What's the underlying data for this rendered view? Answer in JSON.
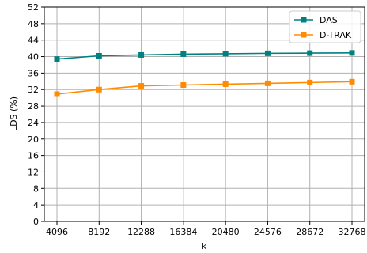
{
  "chart_data": {
    "type": "line",
    "x": [
      4096,
      8192,
      12288,
      16384,
      20480,
      24576,
      28672,
      32768
    ],
    "x_tick_labels": [
      "4096",
      "8192",
      "12288",
      "16384",
      "20480",
      "24576",
      "28672",
      "32768"
    ],
    "y_ticks": [
      0,
      4,
      8,
      12,
      16,
      20,
      24,
      28,
      32,
      36,
      40,
      44,
      48,
      52
    ],
    "y_tick_labels": [
      "0",
      "4",
      "8",
      "12",
      "16",
      "20",
      "24",
      "28",
      "32",
      "36",
      "40",
      "44",
      "48",
      "52"
    ],
    "ylim": [
      0,
      52
    ],
    "xlabel": "k",
    "ylabel": "LDS (%)",
    "grid": true,
    "legend_position": "top-right",
    "series": [
      {
        "name": "DAS",
        "color": "#008080",
        "marker": "square",
        "values": [
          39.4,
          40.2,
          40.4,
          40.6,
          40.7,
          40.8,
          40.85,
          40.9
        ]
      },
      {
        "name": "D-TRAK",
        "color": "#ff8c00",
        "marker": "square",
        "values": [
          30.9,
          32.0,
          32.9,
          33.1,
          33.3,
          33.5,
          33.7,
          33.9
        ]
      }
    ]
  }
}
